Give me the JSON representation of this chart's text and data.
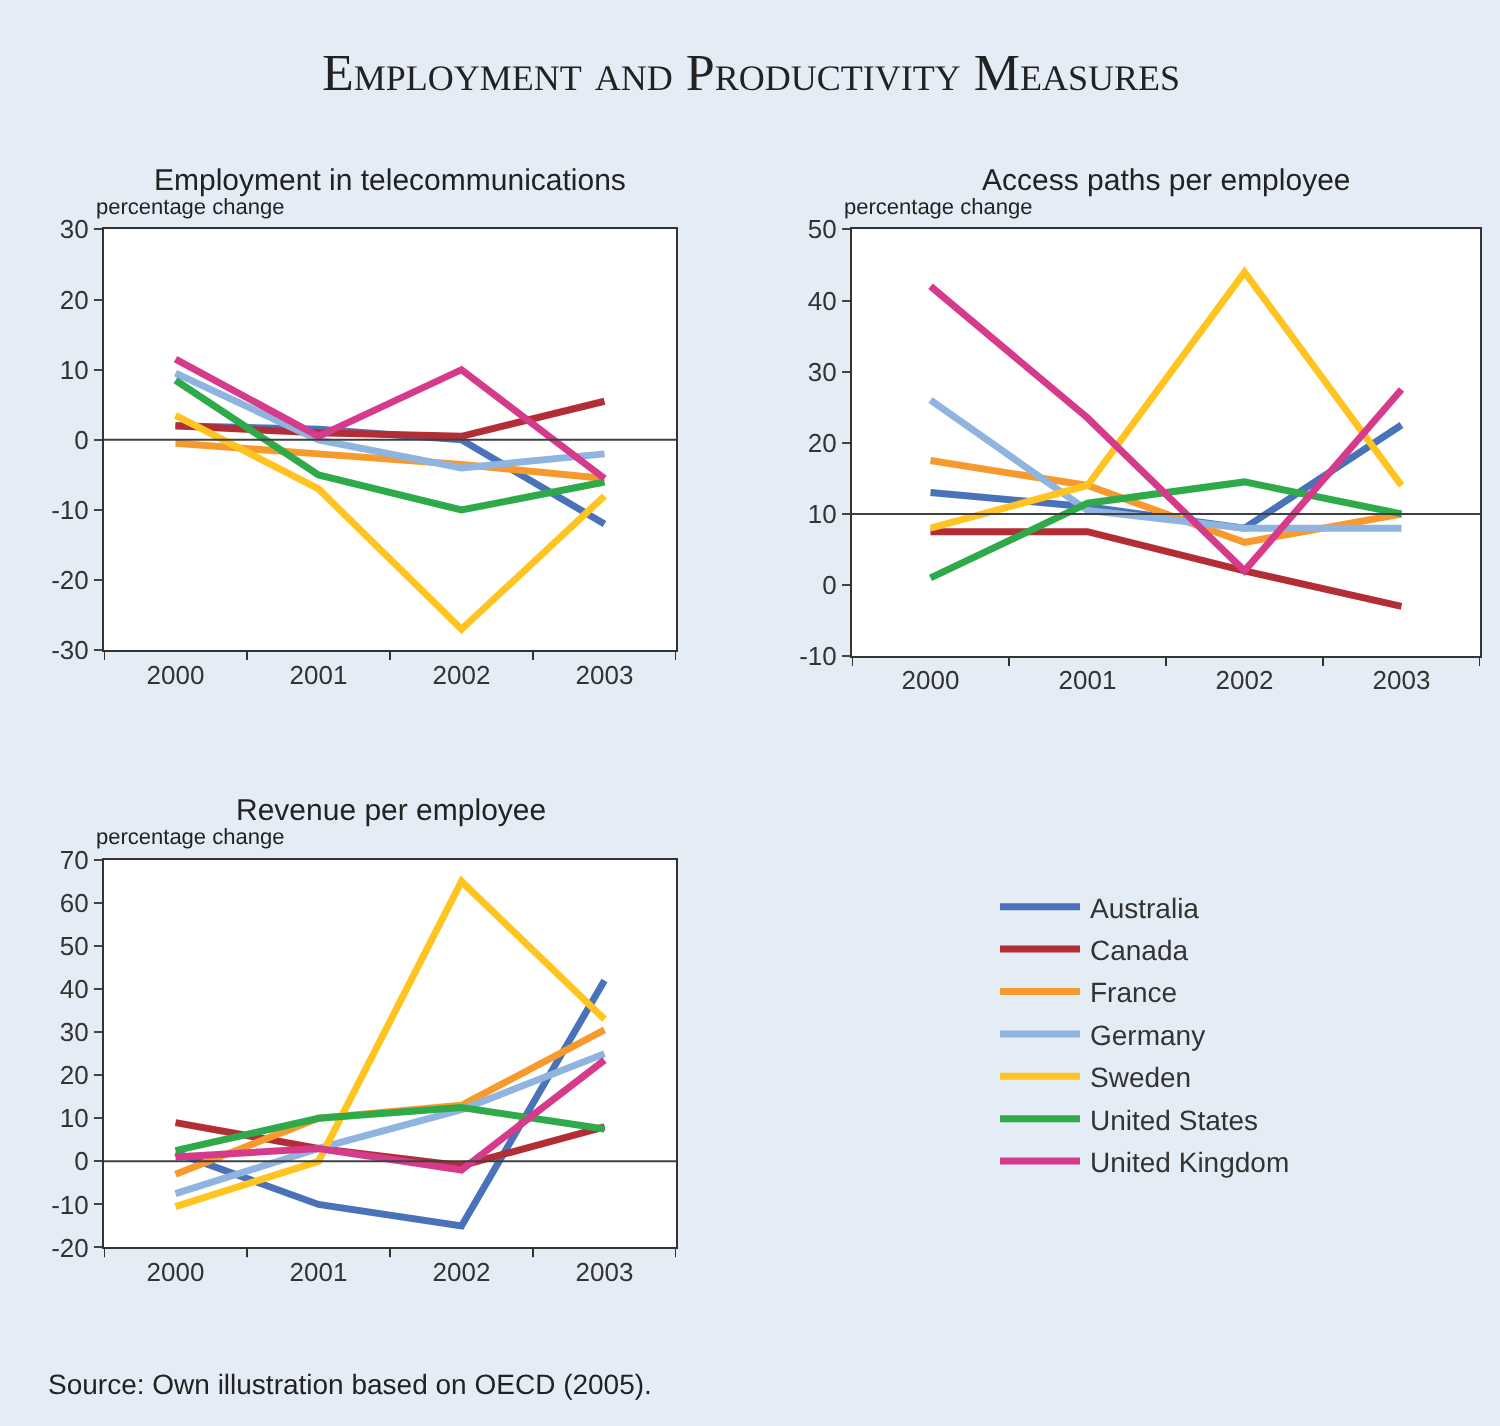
{
  "chart_data": [
    {
      "type": "line",
      "title": "Employment in telecommunications",
      "ylabel": "percentage change",
      "annotations": [
        "Employment and Productivity Measures"
      ],
      "categories": [
        "2000",
        "2001",
        "2002",
        "2003"
      ],
      "ylim": [
        -30,
        30
      ],
      "yticks": [
        -30,
        -20,
        -10,
        0,
        10,
        20,
        30
      ],
      "grid": false,
      "legend": "bottom right",
      "marker": "none",
      "line_style": "solid",
      "ref_lines": [
        {
          "axis": "y",
          "value": 0,
          "color": "#404040"
        }
      ],
      "series": [
        {
          "name": "Australia",
          "color": "#4a72b8",
          "values": [
            2,
            1.5,
            0,
            -12
          ]
        },
        {
          "name": "Canada",
          "color": "#b22d35",
          "values": [
            2,
            1,
            0.5,
            5.5
          ]
        },
        {
          "name": "France",
          "color": "#f79a2e",
          "values": [
            -0.5,
            -2,
            -3.5,
            -5.5
          ]
        },
        {
          "name": "Germany",
          "color": "#8fb4e0",
          "values": [
            9.5,
            0,
            -4,
            -2
          ]
        },
        {
          "name": "Sweden",
          "color": "#ffc41f",
          "values": [
            3.5,
            -7,
            -27,
            -8
          ]
        },
        {
          "name": "United States",
          "color": "#2faa4a",
          "values": [
            8.5,
            -5,
            -10,
            -6
          ]
        },
        {
          "name": "United Kingdom",
          "color": "#d63a8b",
          "values": [
            11.5,
            0.5,
            10,
            -5.5
          ]
        }
      ]
    },
    {
      "type": "line",
      "title": "Access paths per employee",
      "ylabel": "percentage change",
      "categories": [
        "2000",
        "2001",
        "2002",
        "2003"
      ],
      "ylim": [
        -10,
        50
      ],
      "yticks": [
        -10,
        0,
        10,
        20,
        30,
        40,
        50
      ],
      "grid": false,
      "marker": "none",
      "line_style": "solid",
      "ref_lines": [
        {
          "axis": "y",
          "value": 10,
          "color": "#404040"
        }
      ],
      "series": [
        {
          "color": "#4a72b8",
          "values": [
            13,
            11,
            8,
            22.5
          ]
        },
        {
          "color": "#b22d35",
          "values": [
            7.5,
            7.5,
            2,
            -3
          ]
        },
        {
          "color": "#f79a2e",
          "values": [
            17.5,
            14,
            6,
            10
          ]
        },
        {
          "color": "#8fb4e0",
          "values": [
            26,
            10.5,
            8,
            8
          ]
        },
        {
          "color": "#ffc41f",
          "values": [
            8,
            14,
            44,
            14
          ]
        },
        {
          "color": "#2faa4a",
          "values": [
            1,
            11.5,
            14.5,
            10
          ]
        },
        {
          "color": "#d63a8b",
          "values": [
            42,
            23.5,
            2,
            27.5
          ]
        }
      ]
    },
    {
      "type": "line",
      "title": "Revenue per employee",
      "ylabel": "percentage change",
      "annotations": [
        "Source: Own illustration based on OECD (2005)."
      ],
      "categories": [
        "2000",
        "2001",
        "2002",
        "2003"
      ],
      "ylim": [
        -20,
        70
      ],
      "yticks": [
        -20,
        -10,
        0,
        10,
        20,
        30,
        40,
        50,
        60,
        70
      ],
      "grid": false,
      "marker": "none",
      "line_style": "solid",
      "ref_lines": [
        {
          "axis": "y",
          "value": 0,
          "color": "#404040"
        }
      ],
      "series": [
        {
          "color": "#4a72b8",
          "values": [
            2,
            -10,
            -15,
            42
          ]
        },
        {
          "color": "#b22d35",
          "values": [
            9,
            3,
            -1,
            8
          ]
        },
        {
          "color": "#f79a2e",
          "values": [
            -3,
            10,
            13,
            30.5
          ]
        },
        {
          "color": "#8fb4e0",
          "values": [
            -7.5,
            3,
            12,
            25
          ]
        },
        {
          "color": "#ffc41f",
          "values": [
            -10.5,
            0,
            65,
            33
          ]
        },
        {
          "color": "#2faa4a",
          "values": [
            2.5,
            10,
            12.5,
            7.5
          ]
        },
        {
          "color": "#d63a8b",
          "values": [
            1,
            3,
            -2,
            23.5
          ]
        }
      ]
    }
  ]
}
